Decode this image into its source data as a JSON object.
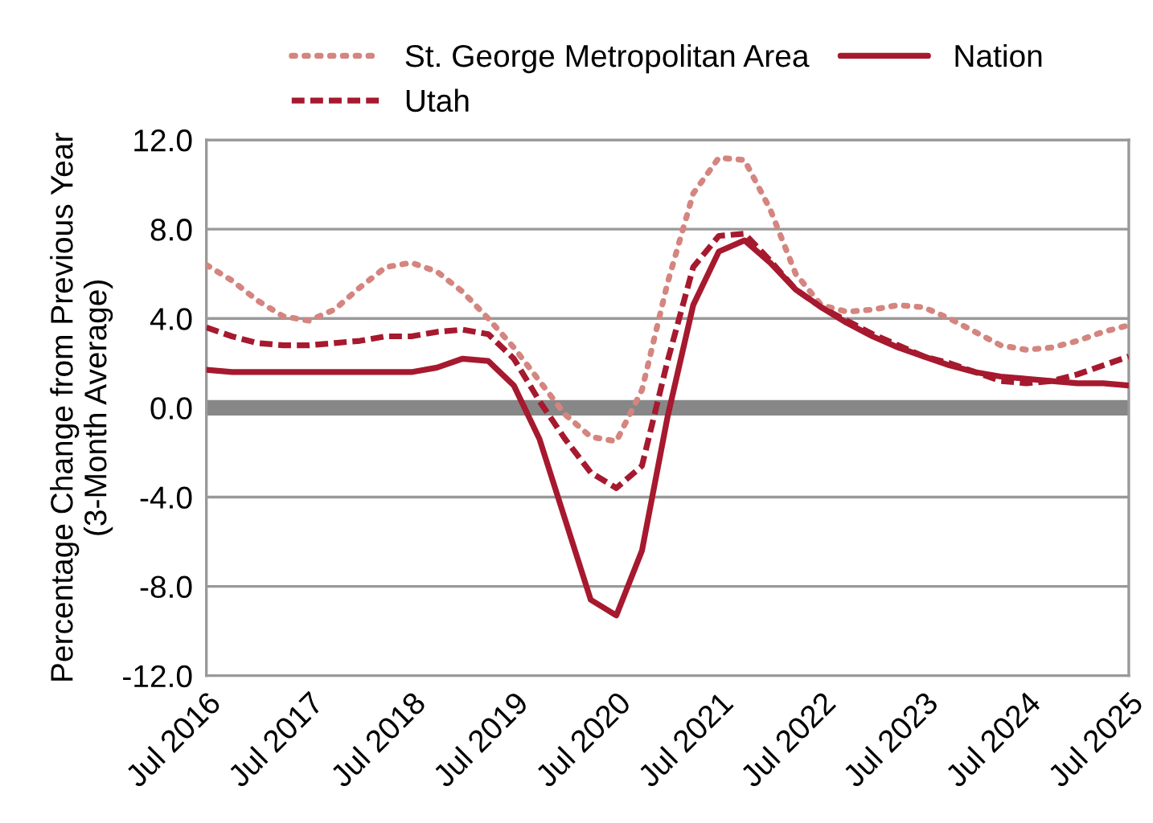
{
  "chart_data": {
    "type": "line",
    "ylabel": "Percentage Change from Previous Year\n(3-Month Average)",
    "categories": [
      "Jul 2016",
      null,
      null,
      null,
      "Jul 2017",
      null,
      null,
      null,
      "Jul 2018",
      null,
      null,
      null,
      "Jul 2019",
      null,
      null,
      null,
      "Jul 2020",
      null,
      null,
      null,
      "Jul 2021",
      null,
      null,
      null,
      "Jul 2022",
      null,
      null,
      null,
      "Jul 2023",
      null,
      null,
      null,
      "Jul 2024",
      null,
      null,
      null,
      "Jul 2025"
    ],
    "series": [
      {
        "name": "St. George Metropolitan Area",
        "color": "#d4857f",
        "line_style": "dotted",
        "values": [
          6.4,
          5.7,
          4.8,
          4.1,
          3.9,
          4.4,
          5.4,
          6.3,
          6.5,
          6.1,
          5.2,
          4.0,
          2.7,
          1.2,
          -0.3,
          -1.3,
          -1.5,
          0.8,
          5.6,
          9.6,
          11.2,
          11.1,
          8.9,
          6.0,
          4.6,
          4.3,
          4.4,
          4.6,
          4.5,
          4.0,
          3.4,
          2.8,
          2.6,
          2.7,
          3.0,
          3.4,
          3.7
        ]
      },
      {
        "name": "Utah",
        "color": "#a6192e",
        "line_style": "dashed",
        "values": [
          3.6,
          3.2,
          2.9,
          2.8,
          2.8,
          2.9,
          3.0,
          3.2,
          3.2,
          3.4,
          3.5,
          3.3,
          2.2,
          0.3,
          -1.4,
          -2.9,
          -3.6,
          -2.6,
          2.1,
          6.3,
          7.7,
          7.8,
          6.6,
          5.3,
          4.5,
          3.9,
          3.3,
          2.8,
          2.3,
          2.0,
          1.6,
          1.2,
          1.1,
          1.2,
          1.5,
          1.9,
          2.3
        ]
      },
      {
        "name": "Nation",
        "color": "#a6192e",
        "line_style": "solid",
        "values": [
          1.7,
          1.6,
          1.6,
          1.6,
          1.6,
          1.6,
          1.6,
          1.6,
          1.6,
          1.8,
          2.2,
          2.1,
          1.0,
          -1.4,
          -5.0,
          -8.6,
          -9.3,
          -6.4,
          -0.4,
          4.6,
          7.0,
          7.5,
          6.5,
          5.3,
          4.5,
          3.8,
          3.2,
          2.7,
          2.3,
          1.9,
          1.6,
          1.4,
          1.3,
          1.2,
          1.1,
          1.1,
          1.0
        ]
      }
    ],
    "ylim": [
      -12,
      12
    ],
    "yticks": [
      {
        "value": -12,
        "label": "-12.0"
      },
      {
        "value": -8,
        "label": "-8.0"
      },
      {
        "value": -4,
        "label": "-4.0"
      },
      {
        "value": 0,
        "label": "0.0"
      },
      {
        "value": 4,
        "label": "4.0"
      },
      {
        "value": 8,
        "label": "8.0"
      },
      {
        "value": 12,
        "label": "12.0"
      }
    ],
    "ref_lines": [
      {
        "axis": "y",
        "value": 0,
        "color": "#878787"
      }
    ],
    "grid": "y",
    "legend": "top"
  }
}
